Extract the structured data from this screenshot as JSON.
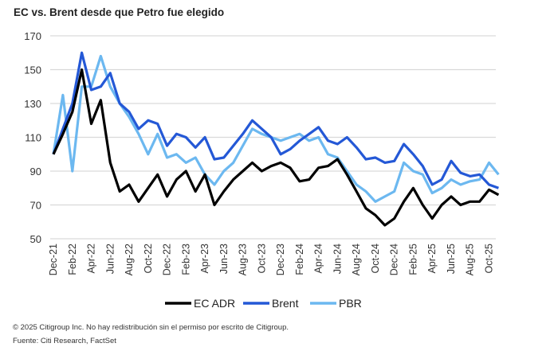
{
  "chart_data": {
    "type": "line",
    "title": "EC vs. Brent desde que Petro fue elegido",
    "xlabel": "",
    "ylabel": "",
    "ylim": [
      50,
      170
    ],
    "yticks": [
      50,
      70,
      90,
      110,
      130,
      150,
      170
    ],
    "grid": true,
    "legend": "bottom",
    "xtick_labels": [
      "Dec-21",
      "Feb-22",
      "Apr-22",
      "Jun-22",
      "Aug-22",
      "Oct-22",
      "Dec-22",
      "Feb-23",
      "Apr-23",
      "Jun-23",
      "Aug-23",
      "Oct-23",
      "Dec-23",
      "Feb-24",
      "Apr-24",
      "Jun-24",
      "Aug-24",
      "Oct-24",
      "Dec-24",
      "Feb-25",
      "Apr-25",
      "Jun-25",
      "Aug-25",
      "Oct-25"
    ],
    "x": [
      "2021-12",
      "2022-01",
      "2022-02",
      "2022-03",
      "2022-04",
      "2022-05",
      "2022-06",
      "2022-07",
      "2022-08",
      "2022-09",
      "2022-10",
      "2022-11",
      "2022-12",
      "2023-01",
      "2023-02",
      "2023-03",
      "2023-04",
      "2023-05",
      "2023-06",
      "2023-07",
      "2023-08",
      "2023-09",
      "2023-10",
      "2023-11",
      "2023-12",
      "2024-01",
      "2024-02",
      "2024-03",
      "2024-04",
      "2024-05",
      "2024-06",
      "2024-07",
      "2024-08",
      "2024-09",
      "2024-10",
      "2024-11",
      "2024-12",
      "2025-01",
      "2025-02",
      "2025-03",
      "2025-04",
      "2025-05",
      "2025-06",
      "2025-07",
      "2025-08",
      "2025-09",
      "2025-10",
      "2025-11"
    ],
    "series": [
      {
        "name": "EC ADR",
        "color": "#000000",
        "values": [
          100,
          112,
          125,
          150,
          118,
          132,
          95,
          78,
          82,
          72,
          80,
          88,
          75,
          85,
          90,
          78,
          88,
          70,
          78,
          85,
          90,
          95,
          90,
          93,
          95,
          92,
          84,
          85,
          92,
          93,
          97,
          88,
          78,
          68,
          64,
          58,
          62,
          72,
          80,
          70,
          62,
          70,
          75,
          70,
          72,
          72,
          79,
          76
        ]
      },
      {
        "name": "Brent",
        "color": "#2458d6",
        "values": [
          100,
          115,
          130,
          160,
          138,
          140,
          148,
          130,
          125,
          115,
          120,
          118,
          105,
          112,
          110,
          104,
          110,
          97,
          98,
          105,
          112,
          120,
          115,
          110,
          100,
          103,
          108,
          112,
          116,
          108,
          106,
          110,
          104,
          97,
          98,
          95,
          96,
          106,
          100,
          93,
          82,
          85,
          96,
          89,
          87,
          88,
          82,
          80
        ]
      },
      {
        "name": "PBR",
        "color": "#6cb8f0",
        "values": [
          100,
          135,
          90,
          140,
          140,
          158,
          140,
          130,
          122,
          112,
          100,
          112,
          98,
          100,
          95,
          98,
          88,
          82,
          90,
          95,
          105,
          115,
          112,
          110,
          108,
          110,
          112,
          108,
          110,
          100,
          98,
          90,
          82,
          78,
          72,
          75,
          78,
          95,
          90,
          88,
          77,
          80,
          85,
          82,
          84,
          85,
          95,
          88
        ]
      }
    ]
  },
  "footer": {
    "copyright": "© 2025 Citigroup Inc. No hay redistribución sin el permiso por escrito de Citigroup.",
    "source": "Fuente: Citi Research, FactSet"
  }
}
